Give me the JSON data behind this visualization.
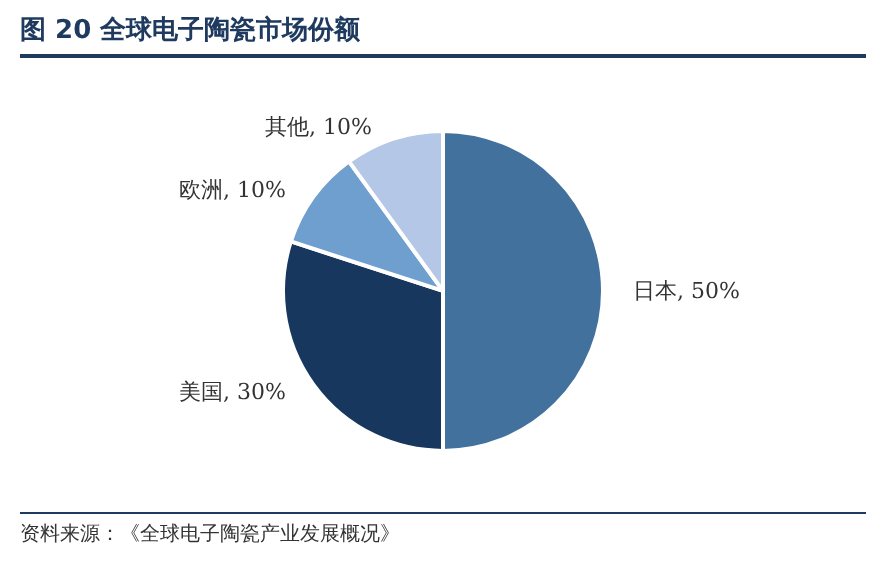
{
  "chart_data": {
    "type": "pie",
    "title": "图 20  全球电子陶瓷市场份额",
    "categories": [
      "日本",
      "美国",
      "欧洲",
      "其他"
    ],
    "values": [
      50,
      30,
      10,
      10
    ],
    "colors": [
      "#41719c",
      "#17375e",
      "#6f9fcf",
      "#b4c7e7"
    ],
    "value_labels": [
      ", 50%",
      ", 30%",
      ", 10%",
      ", 10%"
    ],
    "annotations": [
      "资料来源：《全球电子陶瓷产业发展概况》"
    ]
  }
}
